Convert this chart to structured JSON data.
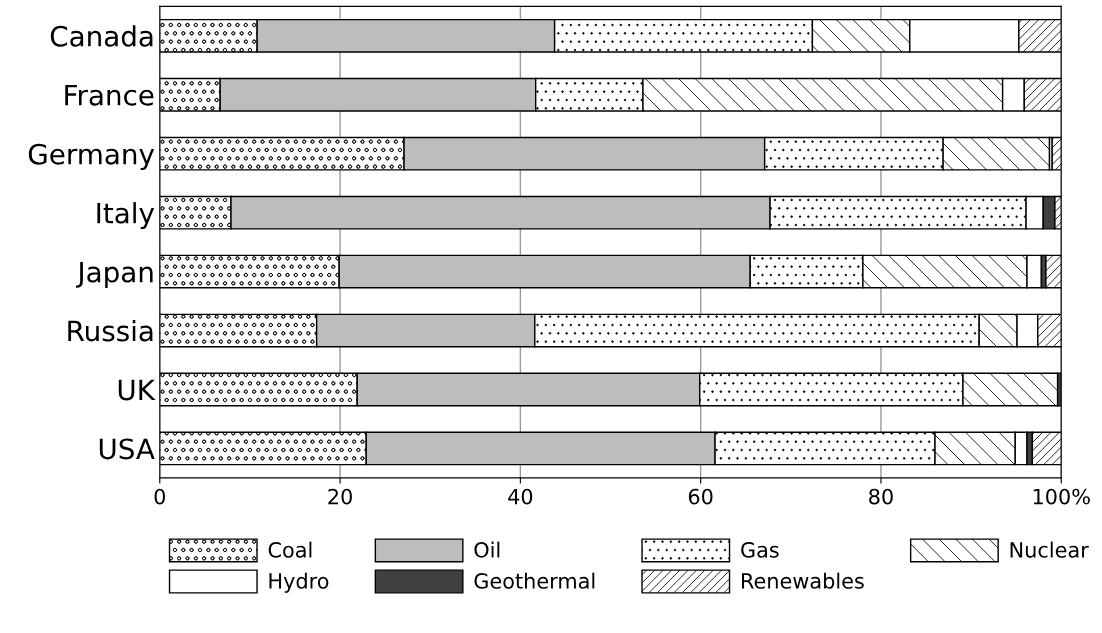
{
  "chart_data": {
    "type": "bar",
    "orientation": "horizontal",
    "stacked": true,
    "categories": [
      "Canada",
      "France",
      "Germany",
      "Italy",
      "Japan",
      "Russia",
      "UK",
      "USA"
    ],
    "series": [
      {
        "name": "Coal",
        "color": "#000000",
        "values": [
          10.8,
          6.7,
          27.1,
          7.9,
          19.9,
          17.4,
          21.9,
          22.9
        ]
      },
      {
        "name": "Oil",
        "color": "#bdbdbd",
        "values": [
          33,
          35,
          40,
          59.8,
          45.6,
          24.2,
          38,
          38.7
        ]
      },
      {
        "name": "Gas",
        "color": "#000000",
        "values": [
          28.6,
          11.9,
          19.8,
          28.4,
          12.5,
          49.3,
          29.2,
          24.4
        ]
      },
      {
        "name": "Nuclear",
        "color": "#000000",
        "values": [
          10.8,
          39.9,
          11.8,
          0,
          18.2,
          4.2,
          10.5,
          8.9
        ]
      },
      {
        "name": "Hydro",
        "color": "#ffffff",
        "values": [
          12.1,
          2.4,
          0.3,
          1.9,
          1.6,
          2.3,
          0,
          1.3
        ]
      },
      {
        "name": "Geothermal",
        "color": "#404040",
        "values": [
          0,
          0,
          0,
          1.3,
          0.5,
          0,
          0.4,
          0.6
        ]
      },
      {
        "name": "Renewables",
        "color": "#000000",
        "values": [
          4.7,
          4.1,
          1.0,
          0.7,
          1.7,
          2.6,
          0,
          3.2
        ]
      }
    ],
    "xlim": [
      0,
      100
    ],
    "xticks": [
      0,
      20,
      40,
      60,
      {
        "value": 100,
        "label": "100%"
      },
      80
    ],
    "grid": "x",
    "legend": "bottom"
  }
}
